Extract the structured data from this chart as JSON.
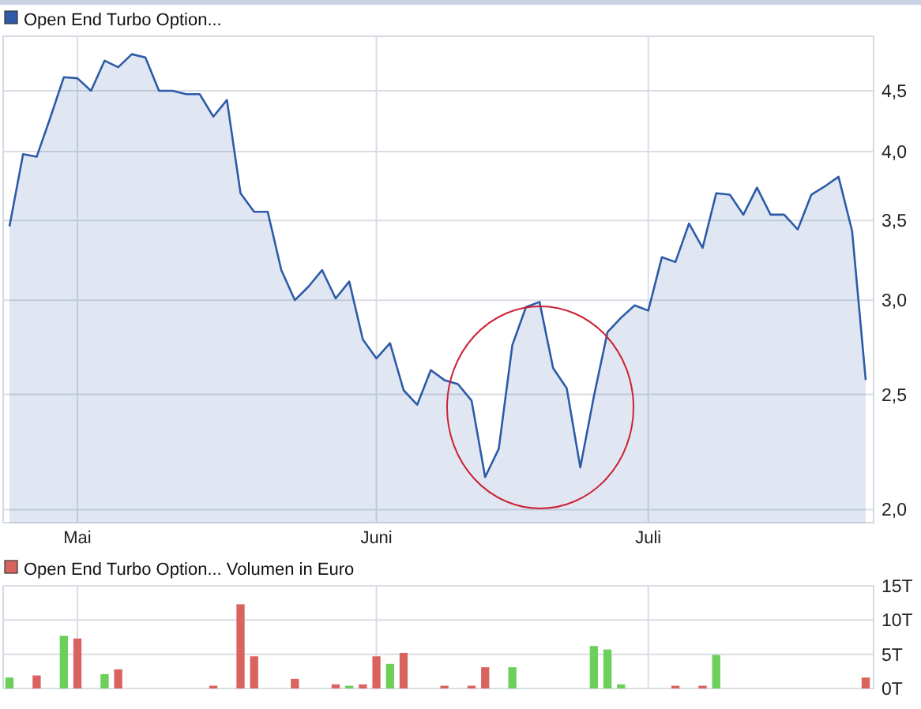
{
  "chart_data": [
    {
      "type": "area",
      "log": true,
      "grid": true,
      "legend": "top left",
      "ylim": [
        1.95,
        5.0
      ],
      "yticks": [
        {
          "value": 2.0,
          "label": "2,0"
        },
        {
          "value": 2.5,
          "label": "2,5"
        },
        {
          "value": 3.0,
          "label": "3,0"
        },
        {
          "value": 3.5,
          "label": "3,5"
        },
        {
          "value": 4.0,
          "label": "4,0"
        },
        {
          "value": 4.5,
          "label": "4,5"
        }
      ],
      "categories": [
        null,
        null,
        null,
        null,
        null,
        "Mai",
        null,
        null,
        null,
        null,
        null,
        null,
        null,
        null,
        null,
        null,
        null,
        null,
        null,
        null,
        null,
        null,
        null,
        null,
        null,
        null,
        null,
        "Juni",
        null,
        null,
        null,
        null,
        null,
        null,
        null,
        null,
        null,
        null,
        null,
        null,
        null,
        null,
        null,
        null,
        null,
        null,
        null,
        "Juli",
        null,
        null,
        null,
        null,
        null,
        null,
        null,
        null,
        null,
        null,
        null,
        null,
        null,
        null,
        null,
        null
      ],
      "series": [
        {
          "name": "Open End Turbo Option...",
          "color": "#2d5ba8",
          "values": [
            3.46,
            3.98,
            3.96,
            4.27,
            4.62,
            4.61,
            4.5,
            4.77,
            4.71,
            4.83,
            4.8,
            4.5,
            4.5,
            4.47,
            4.47,
            4.28,
            4.42,
            3.69,
            3.56,
            3.56,
            3.18,
            3.0,
            3.08,
            3.18,
            3.01,
            3.11,
            2.78,
            2.68,
            2.76,
            2.52,
            2.45,
            2.62,
            2.57,
            2.55,
            2.47,
            2.13,
            2.25,
            2.75,
            2.96,
            2.99,
            2.63,
            2.53,
            2.17,
            2.49,
            2.82,
            2.9,
            2.97,
            2.94,
            3.26,
            3.23,
            3.48,
            3.32,
            3.69,
            3.68,
            3.54,
            3.73,
            3.54,
            3.54,
            3.44,
            3.68,
            3.74,
            3.81,
            3.43,
            2.57
          ]
        }
      ]
    },
    {
      "type": "bar",
      "grid": true,
      "legend": "top left",
      "tick_labels": "y",
      "ylim": [
        0,
        15
      ],
      "yticks": [
        {
          "value": 0,
          "label": "0T"
        },
        {
          "value": 5,
          "label": "5T"
        },
        {
          "value": 10,
          "label": "10T"
        },
        {
          "value": 15,
          "label": "15T"
        }
      ],
      "categories": [
        null,
        null,
        null,
        null,
        null,
        null,
        null,
        null,
        null,
        null,
        null,
        null,
        null,
        null,
        null,
        null,
        null,
        null,
        null,
        null,
        null,
        null,
        null,
        null,
        null,
        null,
        null,
        null,
        null,
        null,
        null,
        null,
        null,
        null,
        null,
        null,
        null,
        null,
        null,
        null,
        null,
        null,
        null,
        null,
        null,
        null,
        null,
        null,
        null,
        null,
        null,
        null,
        null,
        null,
        null,
        null,
        null,
        null,
        null,
        null,
        null,
        null,
        null,
        null
      ],
      "series": [
        {
          "name": "Open End Turbo Option... Volumen in Euro",
          "color": "#d9645f",
          "values": [
            1.6,
            null,
            1.9,
            null,
            7.7,
            7.3,
            null,
            2.1,
            2.8,
            null,
            null,
            null,
            null,
            null,
            null,
            0.4,
            null,
            12.3,
            4.7,
            null,
            null,
            1.4,
            null,
            null,
            0.6,
            0.4,
            0.6,
            4.7,
            3.6,
            5.2,
            null,
            null,
            0.4,
            null,
            0.4,
            3.1,
            null,
            3.1,
            null,
            null,
            null,
            null,
            null,
            6.2,
            5.7,
            0.6,
            null,
            null,
            null,
            0.4,
            null,
            0.4,
            4.9,
            null,
            null,
            null,
            null,
            null,
            null,
            null,
            null,
            null,
            null,
            1.6
          ],
          "colors": [
            "#6ccf5a",
            null,
            "#d9645f",
            null,
            "#6ccf5a",
            "#d9645f",
            null,
            "#6ccf5a",
            "#d9645f",
            null,
            null,
            null,
            null,
            null,
            null,
            "#d9645f",
            null,
            "#d9645f",
            "#d9645f",
            null,
            null,
            "#d9645f",
            null,
            null,
            "#d9645f",
            "#6ccf5a",
            "#d9645f",
            "#d9645f",
            "#6ccf5a",
            "#d9645f",
            null,
            null,
            "#d9645f",
            null,
            "#d9645f",
            "#d9645f",
            null,
            "#6ccf5a",
            null,
            null,
            null,
            null,
            null,
            "#6ccf5a",
            "#6ccf5a",
            "#6ccf5a",
            null,
            null,
            null,
            "#d9645f",
            null,
            "#d9645f",
            "#6ccf5a",
            null,
            null,
            null,
            null,
            null,
            null,
            null,
            null,
            null,
            null,
            "#d9645f"
          ]
        }
      ]
    }
  ]
}
